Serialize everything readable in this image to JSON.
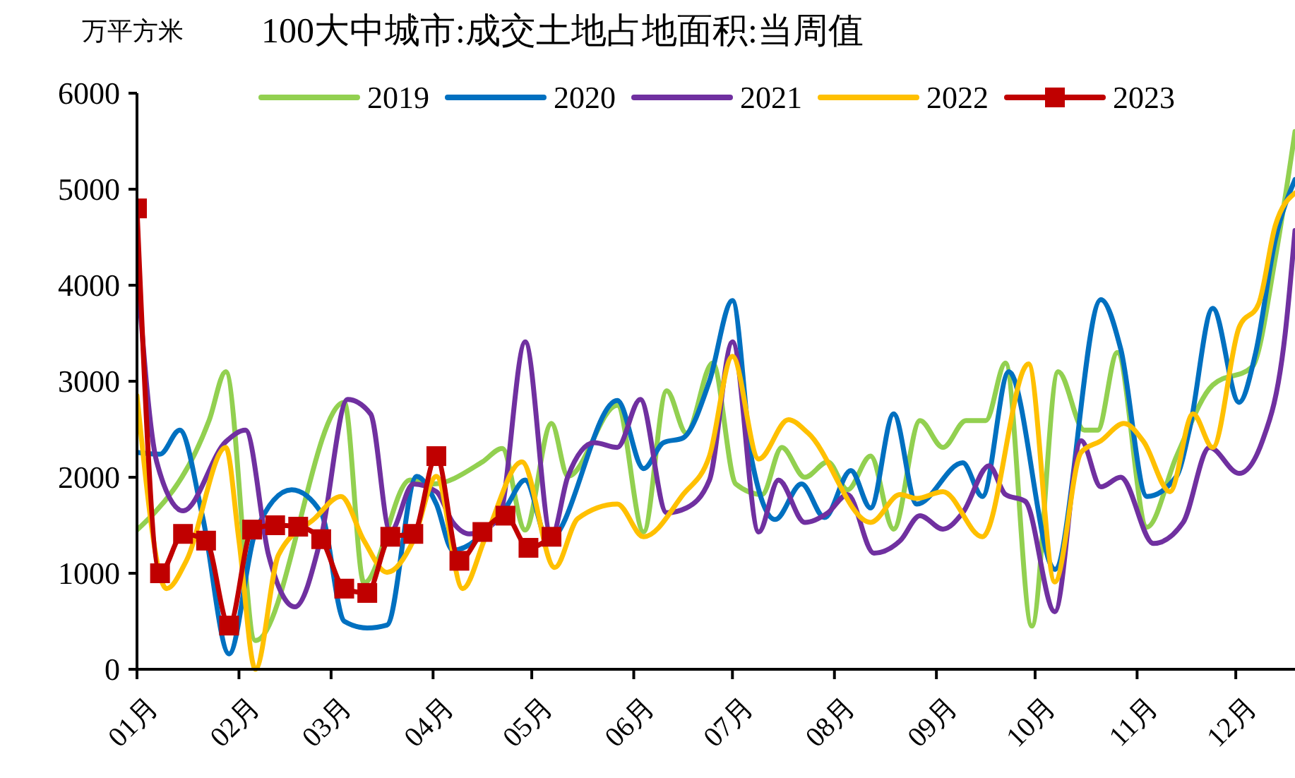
{
  "chart_data": {
    "type": "line",
    "title": "100大中城市:成交土地占地面积:当周值",
    "ylabel": "万平方米",
    "xlim": [
      "--01-01",
      "--12-19"
    ],
    "xticks": [
      {
        "value": "--01-01",
        "label": "01月"
      },
      {
        "value": "--02-01",
        "label": "02月"
      },
      {
        "value": "--03-01",
        "label": "03月"
      },
      {
        "value": "--04-01",
        "label": "04月"
      },
      {
        "value": "--05-01",
        "label": "05月"
      },
      {
        "value": "--06-01",
        "label": "06月"
      },
      {
        "value": "--07-01",
        "label": "07月"
      },
      {
        "value": "--08-01",
        "label": "08月"
      },
      {
        "value": "--09-01",
        "label": "09月"
      },
      {
        "value": "--10-01",
        "label": "10月"
      },
      {
        "value": "--11-01",
        "label": "11月"
      },
      {
        "value": "--12-01",
        "label": "12月"
      }
    ],
    "ylim": [
      0,
      6000
    ],
    "yticks": [
      0,
      1000,
      2000,
      3000,
      4000,
      5000,
      6000
    ],
    "grid": false,
    "legend": "top",
    "line_style": "solid",
    "series": [
      {
        "name": "2019",
        "color": "#92d050",
        "marker": "none",
        "x": [
          "--01-01",
          "--01-23",
          "--01-28",
          "--02-06",
          "--03-05",
          "--03-11",
          "--03-25",
          "--04-01",
          "--04-16",
          "--04-22",
          "--04-29",
          "--05-07",
          "--05-12",
          "--05-27",
          "--06-04",
          "--06-11",
          "--06-17",
          "--06-25",
          "--07-02",
          "--07-10",
          "--07-16",
          "--07-23",
          "--07-30",
          "--08-05",
          "--08-12",
          "--08-19",
          "--08-27",
          "--09-03",
          "--09-10",
          "--09-16",
          "--09-22",
          "--09-30",
          "--10-08",
          "--10-16",
          "--10-20",
          "--10-26",
          "--11-04",
          "--11-13",
          "--11-24",
          "--12-06",
          "--12-13",
          "--12-19"
        ],
        "values": [
          1450,
          2600,
          3100,
          300,
          2780,
          900,
          1970,
          1930,
          2160,
          2300,
          1450,
          2560,
          2010,
          2750,
          1430,
          2900,
          2460,
          3190,
          1930,
          1820,
          2310,
          2000,
          2160,
          1870,
          2220,
          1460,
          2590,
          2310,
          2590,
          2590,
          3190,
          450,
          3100,
          2490,
          2490,
          3300,
          1480,
          2220,
          2960,
          3150,
          4280,
          5600
        ]
      },
      {
        "name": "2020",
        "color": "#0070c0",
        "marker": "none",
        "x": [
          "--01-01",
          "--01-08",
          "--01-14",
          "--01-21",
          "--01-29",
          "--02-06",
          "--02-17",
          "--02-26",
          "--03-05",
          "--03-12",
          "--03-18",
          "--03-27",
          "--04-02",
          "--04-07",
          "--04-23",
          "--04-29",
          "--05-06",
          "--05-27",
          "--06-04",
          "--06-10",
          "--06-16",
          "--06-24",
          "--07-01",
          "--07-07",
          "--07-14",
          "--07-22",
          "--07-29",
          "--08-06",
          "--08-12",
          "--08-19",
          "--08-26",
          "--09-09",
          "--09-15",
          "--09-23",
          "--10-07",
          "--10-21",
          "--10-27",
          "--11-04",
          "--11-13",
          "--11-17",
          "--11-24",
          "--12-02",
          "--12-07",
          "--12-13",
          "--12-19"
        ],
        "values": [
          2260,
          2240,
          2490,
          1580,
          160,
          1430,
          1870,
          1630,
          500,
          430,
          460,
          2010,
          1720,
          1240,
          1680,
          1970,
          1340,
          2800,
          2090,
          2360,
          2410,
          3000,
          3840,
          2160,
          1560,
          1930,
          1580,
          2070,
          1680,
          2660,
          1720,
          2150,
          1800,
          3100,
          1040,
          3850,
          3340,
          1800,
          2010,
          2510,
          3760,
          2780,
          3290,
          4470,
          5100
        ]
      },
      {
        "name": "2021",
        "color": "#7030a0",
        "marker": "none",
        "x": [
          "--01-01",
          "--01-07",
          "--01-15",
          "--01-28",
          "--02-03",
          "--02-10",
          "--02-18",
          "--02-26",
          "--03-06",
          "--03-13",
          "--03-19",
          "--03-26",
          "--04-02",
          "--04-07",
          "--04-12",
          "--04-21",
          "--04-29",
          "--05-07",
          "--05-12",
          "--05-20",
          "--05-27",
          "--06-03",
          "--06-11",
          "--06-17",
          "--06-24",
          "--07-01",
          "--07-09",
          "--07-15",
          "--07-23",
          "--07-30",
          "--08-05",
          "--08-13",
          "--08-21",
          "--08-27",
          "--09-03",
          "--09-09",
          "--09-17",
          "--09-22",
          "--09-28",
          "--10-07",
          "--10-15",
          "--10-21",
          "--10-27",
          "--11-06",
          "--11-15",
          "--11-23",
          "--12-02",
          "--12-09",
          "--12-16",
          "--12-19"
        ],
        "values": [
          4180,
          2160,
          1650,
          2370,
          2490,
          1190,
          650,
          1380,
          2810,
          2660,
          1430,
          1930,
          1850,
          1530,
          1410,
          1570,
          3410,
          1380,
          2010,
          2360,
          2310,
          2810,
          1630,
          1680,
          1970,
          3410,
          1430,
          1970,
          1530,
          1630,
          1820,
          1210,
          1340,
          1600,
          1460,
          1630,
          2120,
          1820,
          1750,
          600,
          2380,
          1900,
          2000,
          1310,
          1530,
          2310,
          2040,
          2370,
          3490,
          4570
        ]
      },
      {
        "name": "2022",
        "color": "#ffc000",
        "marker": "none",
        "x": [
          "--01-01",
          "--01-10",
          "--01-16",
          "--01-28",
          "--02-01",
          "--02-06",
          "--02-13",
          "--02-24",
          "--03-04",
          "--03-11",
          "--03-18",
          "--03-26",
          "--04-02",
          "--04-10",
          "--04-17",
          "--04-28",
          "--05-08",
          "--05-15",
          "--05-27",
          "--06-04",
          "--06-16",
          "--06-24",
          "--07-01",
          "--07-09",
          "--07-18",
          "--07-24",
          "--08-12",
          "--08-21",
          "--08-26",
          "--09-03",
          "--09-15",
          "--09-29",
          "--10-07",
          "--10-15",
          "--10-21",
          "--10-28",
          "--11-03",
          "--11-11",
          "--11-18",
          "--11-24",
          "--12-02",
          "--12-08",
          "--12-13",
          "--12-19"
        ],
        "values": [
          2850,
          840,
          1130,
          2310,
          1340,
          0,
          1190,
          1570,
          1800,
          1340,
          1010,
          1340,
          2010,
          840,
          1380,
          2160,
          1060,
          1570,
          1720,
          1380,
          1820,
          2220,
          3260,
          2190,
          2600,
          2460,
          1530,
          1820,
          1780,
          1850,
          1380,
          3180,
          910,
          2260,
          2380,
          2560,
          2370,
          1850,
          2660,
          2310,
          3560,
          3810,
          4620,
          4960
        ]
      },
      {
        "name": "2023",
        "color": "#c00000",
        "marker": "square",
        "x": [
          "--01-01",
          "--01-08",
          "--01-15",
          "--01-22",
          "--01-29",
          "--02-05",
          "--02-12",
          "--02-19",
          "--02-26",
          "--03-05",
          "--03-12",
          "--03-19",
          "--03-26",
          "--04-02",
          "--04-09",
          "--04-16",
          "--04-23",
          "--04-30",
          "--05-07"
        ],
        "values": [
          4800,
          1000,
          1410,
          1340,
          455,
          1455,
          1500,
          1485,
          1355,
          840,
          795,
          1380,
          1410,
          2220,
          1130,
          1430,
          1600,
          1265,
          1380
        ]
      }
    ]
  }
}
